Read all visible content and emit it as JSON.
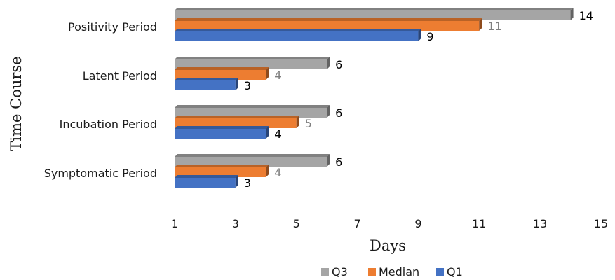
{
  "chart_data": {
    "type": "bar",
    "orientation": "horizontal",
    "style": "3d",
    "ylabel": "Time Course",
    "xlabel": "Days",
    "xlim": [
      1,
      15
    ],
    "x_ticks": [
      "1",
      "3",
      "5",
      "7",
      "9",
      "11",
      "13",
      "15"
    ],
    "categories": [
      "Positivity Period",
      "Latent Period",
      "Incubation Period",
      "Symptomatic Period"
    ],
    "series": [
      {
        "name": "Q3",
        "color": "#a5a5a5",
        "label_color": "#000000",
        "values": [
          14,
          6,
          6,
          6
        ]
      },
      {
        "name": "Median",
        "color": "#ed7d31",
        "label_color": "#7f7f7f",
        "values": [
          11,
          4,
          5,
          4
        ]
      },
      {
        "name": "Q1",
        "color": "#4472c4",
        "label_color": "#000000",
        "values": [
          9,
          3,
          4,
          3
        ]
      }
    ],
    "legend_position": "bottom",
    "grid": false
  }
}
